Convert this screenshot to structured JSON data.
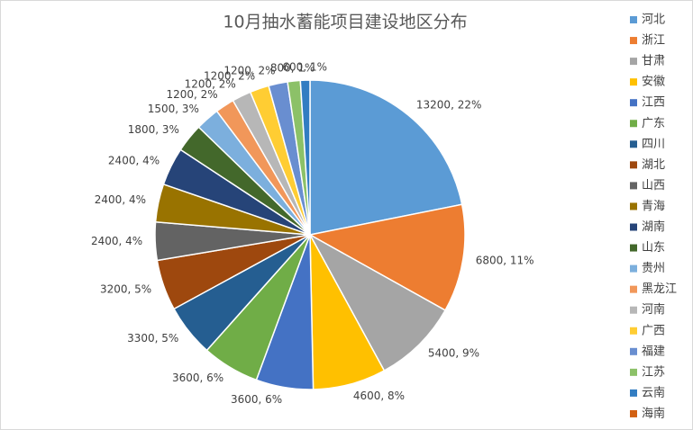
{
  "chart_data": {
    "type": "pie",
    "title": "10月抽水蓄能项目建设地区分布",
    "categories": [
      "河北",
      "浙江",
      "甘肃",
      "安徽",
      "江西",
      "广东",
      "四川",
      "湖北",
      "山西",
      "青海",
      "湖南",
      "山东",
      "贵州",
      "黑龙江",
      "河南",
      "广西",
      "福建",
      "江苏",
      "云南",
      "海南"
    ],
    "values": [
      13200,
      6800,
      5400,
      4600,
      3600,
      3600,
      3300,
      3200,
      2400,
      2400,
      2400,
      1800,
      1500,
      1200,
      1200,
      1200,
      1200,
      800,
      600,
      null
    ],
    "value_labels": [
      "13200, 22%",
      "6800, 11%",
      "5400, 9%",
      "4600, 8%",
      "3600, 6%",
      "3600, 6%",
      "3300, 5%",
      "3200, 5%",
      "2400, 4%",
      "2400, 4%",
      "2400, 4%",
      "1800, 3%",
      "1500, 3%",
      "1200, 2%",
      "1200, 2%",
      "1200, 2%",
      "1200, 2%",
      "800, 1%",
      "600, 1%",
      null
    ],
    "colors": [
      "#5b9bd5",
      "#ed7d31",
      "#a5a5a5",
      "#ffc000",
      "#4472c4",
      "#70ad47",
      "#255e91",
      "#9e480e",
      "#636363",
      "#997300",
      "#264478",
      "#43682b",
      "#7cafdd",
      "#f1975a",
      "#b7b7b7",
      "#ffcd33",
      "#698ed0",
      "#8cc168",
      "#327dc2",
      "#d26012"
    ],
    "legend": "right"
  }
}
